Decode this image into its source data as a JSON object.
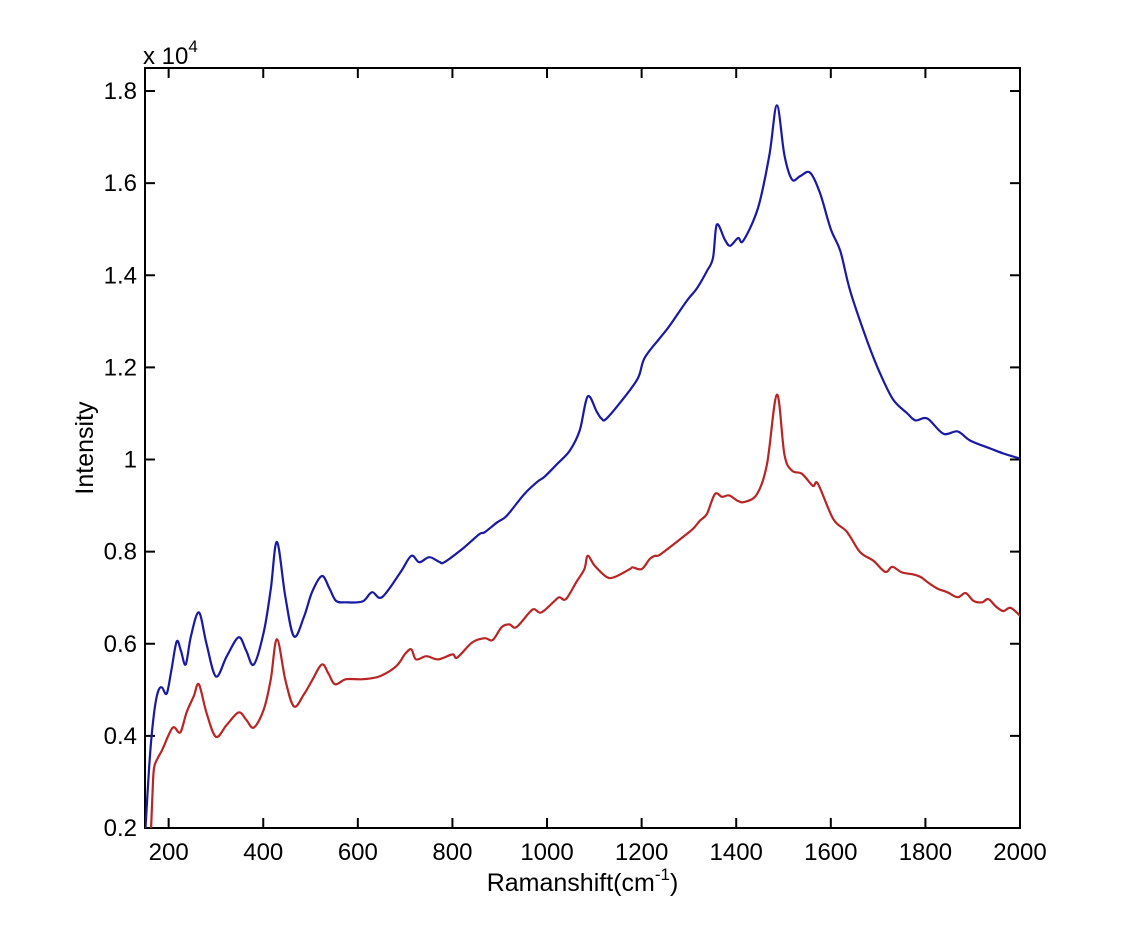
{
  "figure": {
    "background": "#ffffff",
    "axis_color": "#000000",
    "ylabel": "Intensity",
    "xlabel_parts": {
      "base": "Ramanshift(cm",
      "exp": "-1",
      "suffix": ")"
    },
    "multiplier_parts": {
      "base": "x 10",
      "exp": "4"
    }
  },
  "chart_data": {
    "type": "line",
    "title": "",
    "xlabel": "Ramanshift(cm^-1)",
    "ylabel": "Intensity",
    "y_axis_multiplier": "x 10^4",
    "grid": false,
    "legend": "none",
    "x_range": [
      150,
      2000
    ],
    "y_range": [
      0.2,
      1.85
    ],
    "x_ticks": [
      "200",
      "400",
      "600",
      "800",
      "1000",
      "1200",
      "1400",
      "1600",
      "1800",
      "2000"
    ],
    "y_ticks": [
      "0.2",
      "0.4",
      "0.6",
      "0.8",
      "1",
      "1.2",
      "1.4",
      "1.6",
      "1.8"
    ],
    "units_note": "y values are Intensity / 10^4",
    "series": [
      {
        "name": "upper-spectrum-blue",
        "color": "#1919a5",
        "points": [
          [
            151,
            0.2
          ],
          [
            158,
            0.32
          ],
          [
            164,
            0.4
          ],
          [
            172,
            0.47
          ],
          [
            179,
            0.5
          ],
          [
            186,
            0.505
          ],
          [
            196,
            0.492
          ],
          [
            206,
            0.544
          ],
          [
            217,
            0.605
          ],
          [
            226,
            0.585
          ],
          [
            236,
            0.555
          ],
          [
            247,
            0.616
          ],
          [
            264,
            0.668
          ],
          [
            280,
            0.6
          ],
          [
            300,
            0.529
          ],
          [
            323,
            0.573
          ],
          [
            348,
            0.614
          ],
          [
            364,
            0.585
          ],
          [
            380,
            0.555
          ],
          [
            401,
            0.625
          ],
          [
            416,
            0.719
          ],
          [
            429,
            0.821
          ],
          [
            447,
            0.7
          ],
          [
            465,
            0.616
          ],
          [
            486,
            0.658
          ],
          [
            503,
            0.712
          ],
          [
            524,
            0.747
          ],
          [
            540,
            0.72
          ],
          [
            554,
            0.693
          ],
          [
            575,
            0.69
          ],
          [
            610,
            0.692
          ],
          [
            630,
            0.712
          ],
          [
            651,
            0.701
          ],
          [
            690,
            0.755
          ],
          [
            713,
            0.791
          ],
          [
            730,
            0.777
          ],
          [
            751,
            0.788
          ],
          [
            772,
            0.778
          ],
          [
            783,
            0.777
          ],
          [
            821,
            0.806
          ],
          [
            857,
            0.838
          ],
          [
            868,
            0.842
          ],
          [
            895,
            0.864
          ],
          [
            915,
            0.878
          ],
          [
            952,
            0.925
          ],
          [
            980,
            0.952
          ],
          [
            995,
            0.963
          ],
          [
            1022,
            0.991
          ],
          [
            1048,
            1.019
          ],
          [
            1069,
            1.063
          ],
          [
            1086,
            1.137
          ],
          [
            1105,
            1.104
          ],
          [
            1115,
            1.089
          ],
          [
            1125,
            1.088
          ],
          [
            1158,
            1.128
          ],
          [
            1192,
            1.176
          ],
          [
            1206,
            1.22
          ],
          [
            1238,
            1.263
          ],
          [
            1259,
            1.29
          ],
          [
            1295,
            1.344
          ],
          [
            1317,
            1.372
          ],
          [
            1338,
            1.409
          ],
          [
            1351,
            1.438
          ],
          [
            1359,
            1.51
          ],
          [
            1376,
            1.477
          ],
          [
            1387,
            1.464
          ],
          [
            1404,
            1.481
          ],
          [
            1415,
            1.475
          ],
          [
            1446,
            1.546
          ],
          [
            1470,
            1.66
          ],
          [
            1486,
            1.769
          ],
          [
            1502,
            1.66
          ],
          [
            1518,
            1.608
          ],
          [
            1535,
            1.615
          ],
          [
            1556,
            1.623
          ],
          [
            1577,
            1.579
          ],
          [
            1600,
            1.5
          ],
          [
            1620,
            1.453
          ],
          [
            1641,
            1.366
          ],
          [
            1677,
            1.257
          ],
          [
            1705,
            1.185
          ],
          [
            1732,
            1.13
          ],
          [
            1762,
            1.1
          ],
          [
            1779,
            1.085
          ],
          [
            1804,
            1.089
          ],
          [
            1838,
            1.056
          ],
          [
            1868,
            1.061
          ],
          [
            1895,
            1.041
          ],
          [
            1937,
            1.024
          ],
          [
            1965,
            1.013
          ],
          [
            2000,
            1.002
          ]
        ]
      },
      {
        "name": "lower-spectrum-red",
        "color": "#b92424",
        "points": [
          [
            163,
            0.2
          ],
          [
            166,
            0.28
          ],
          [
            169,
            0.33
          ],
          [
            176,
            0.35
          ],
          [
            184,
            0.365
          ],
          [
            190,
            0.378
          ],
          [
            199,
            0.4
          ],
          [
            207,
            0.416
          ],
          [
            213,
            0.418
          ],
          [
            225,
            0.408
          ],
          [
            238,
            0.451
          ],
          [
            253,
            0.486
          ],
          [
            264,
            0.512
          ],
          [
            280,
            0.45
          ],
          [
            300,
            0.398
          ],
          [
            323,
            0.424
          ],
          [
            348,
            0.451
          ],
          [
            364,
            0.435
          ],
          [
            380,
            0.418
          ],
          [
            401,
            0.457
          ],
          [
            416,
            0.523
          ],
          [
            429,
            0.61
          ],
          [
            447,
            0.52
          ],
          [
            465,
            0.464
          ],
          [
            486,
            0.49
          ],
          [
            503,
            0.52
          ],
          [
            524,
            0.555
          ],
          [
            538,
            0.535
          ],
          [
            552,
            0.512
          ],
          [
            575,
            0.523
          ],
          [
            610,
            0.523
          ],
          [
            645,
            0.529
          ],
          [
            681,
            0.551
          ],
          [
            700,
            0.578
          ],
          [
            713,
            0.588
          ],
          [
            723,
            0.566
          ],
          [
            745,
            0.573
          ],
          [
            770,
            0.566
          ],
          [
            800,
            0.577
          ],
          [
            810,
            0.57
          ],
          [
            842,
            0.603
          ],
          [
            868,
            0.612
          ],
          [
            885,
            0.608
          ],
          [
            904,
            0.636
          ],
          [
            920,
            0.642
          ],
          [
            935,
            0.636
          ],
          [
            963,
            0.668
          ],
          [
            973,
            0.675
          ],
          [
            988,
            0.668
          ],
          [
            1016,
            0.693
          ],
          [
            1026,
            0.701
          ],
          [
            1040,
            0.697
          ],
          [
            1062,
            0.734
          ],
          [
            1079,
            0.762
          ],
          [
            1086,
            0.791
          ],
          [
            1101,
            0.769
          ],
          [
            1126,
            0.745
          ],
          [
            1143,
            0.745
          ],
          [
            1175,
            0.762
          ],
          [
            1181,
            0.766
          ],
          [
            1200,
            0.762
          ],
          [
            1217,
            0.784
          ],
          [
            1228,
            0.791
          ],
          [
            1238,
            0.793
          ],
          [
            1274,
            0.821
          ],
          [
            1308,
            0.849
          ],
          [
            1323,
            0.867
          ],
          [
            1338,
            0.882
          ],
          [
            1355,
            0.925
          ],
          [
            1370,
            0.919
          ],
          [
            1385,
            0.922
          ],
          [
            1404,
            0.91
          ],
          [
            1418,
            0.908
          ],
          [
            1444,
            0.925
          ],
          [
            1465,
            0.99
          ],
          [
            1486,
            1.141
          ],
          [
            1502,
            1.01
          ],
          [
            1518,
            0.976
          ],
          [
            1539,
            0.969
          ],
          [
            1562,
            0.943
          ],
          [
            1573,
            0.947
          ],
          [
            1605,
            0.871
          ],
          [
            1634,
            0.843
          ],
          [
            1662,
            0.799
          ],
          [
            1690,
            0.78
          ],
          [
            1715,
            0.756
          ],
          [
            1730,
            0.767
          ],
          [
            1750,
            0.755
          ],
          [
            1772,
            0.751
          ],
          [
            1790,
            0.745
          ],
          [
            1804,
            0.734
          ],
          [
            1825,
            0.72
          ],
          [
            1846,
            0.712
          ],
          [
            1868,
            0.701
          ],
          [
            1885,
            0.71
          ],
          [
            1902,
            0.693
          ],
          [
            1920,
            0.69
          ],
          [
            1933,
            0.697
          ],
          [
            1950,
            0.68
          ],
          [
            1965,
            0.671
          ],
          [
            1980,
            0.678
          ],
          [
            2001,
            0.66
          ]
        ]
      }
    ]
  }
}
